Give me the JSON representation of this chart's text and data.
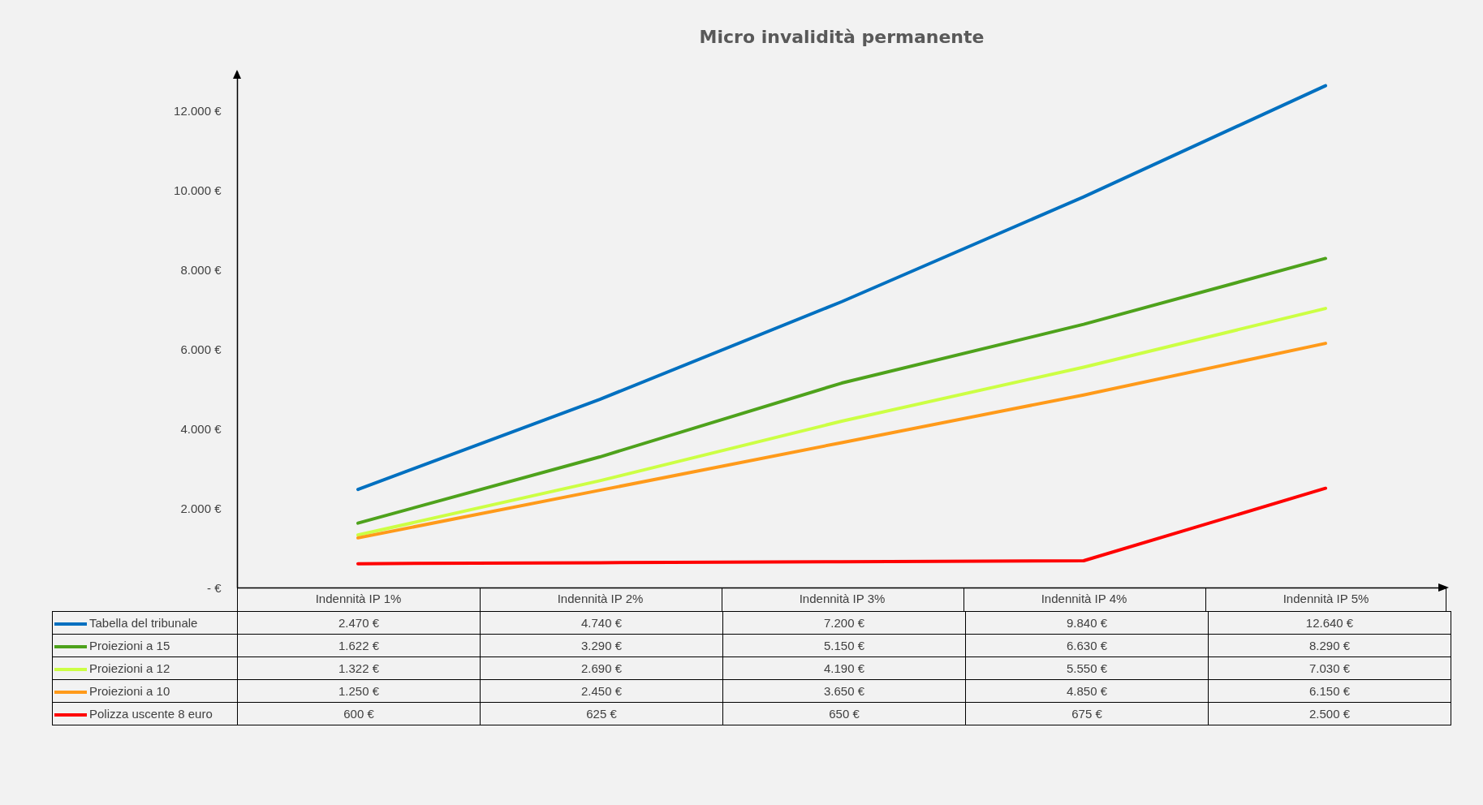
{
  "chart_data": {
    "type": "line",
    "title": "Micro invalidità permanente",
    "categories": [
      "Indennità IP 1%",
      "Indennità IP 2%",
      "Indennità IP 3%",
      "Indennità IP 4%",
      "Indennità IP 5%"
    ],
    "series": [
      {
        "name": "Tabella del tribunale",
        "color": "#0070c0",
        "values": [
          2470,
          4740,
          7200,
          9840,
          12640
        ],
        "value_labels": [
          "2.470 €",
          "4.740 €",
          "7.200 €",
          "9.840 €",
          "12.640 €"
        ]
      },
      {
        "name": "Proiezioni a 15",
        "color": "#4ea21c",
        "values": [
          1622,
          3290,
          5150,
          6630,
          8290
        ],
        "value_labels": [
          "1.622 €",
          "3.290 €",
          "5.150 €",
          "6.630 €",
          "8.290 €"
        ]
      },
      {
        "name": "Proiezioni a 12",
        "color": "#ccff44",
        "values": [
          1322,
          2690,
          4190,
          5550,
          7030
        ],
        "value_labels": [
          "1.322 €",
          "2.690 €",
          "4.190 €",
          "5.550 €",
          "7.030 €"
        ]
      },
      {
        "name": "Proiezioni a 10",
        "color": "#ff9a1a",
        "values": [
          1250,
          2450,
          3650,
          4850,
          6150
        ],
        "value_labels": [
          "1.250 €",
          "2.450 €",
          "3.650 €",
          "4.850 €",
          "6.150 €"
        ]
      },
      {
        "name": "Polizza uscente 8 euro",
        "color": "#ff0000",
        "values": [
          600,
          625,
          650,
          675,
          2500
        ],
        "value_labels": [
          "600 €",
          "625 €",
          "650 €",
          "675 €",
          "2.500 €"
        ]
      }
    ],
    "ylim": [
      0,
      13000
    ],
    "yticks": [
      {
        "value": 0,
        "label": "- €"
      },
      {
        "value": 2000,
        "label": "2.000 €"
      },
      {
        "value": 4000,
        "label": "4.000 €"
      },
      {
        "value": 6000,
        "label": "6.000 €"
      },
      {
        "value": 8000,
        "label": "8.000 €"
      },
      {
        "value": 10000,
        "label": "10.000 €"
      },
      {
        "value": 12000,
        "label": "12.000 €"
      }
    ],
    "grid": false,
    "legend": "bottom",
    "marker": "none",
    "line_style": "solid"
  }
}
